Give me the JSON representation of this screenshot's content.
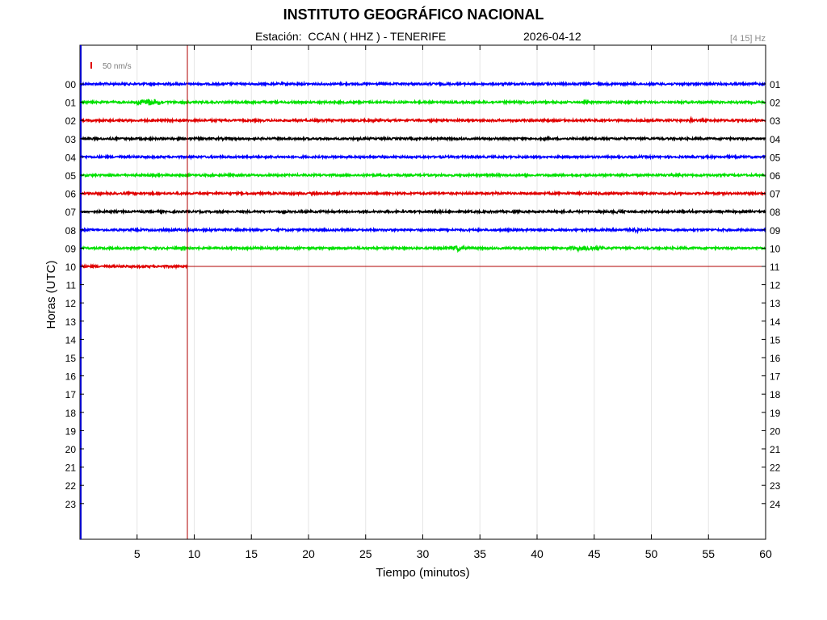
{
  "header": {
    "title": "INSTITUTO GEOGRÁFICO NACIONAL",
    "station_line": "Estación:  CCAN ( HHZ ) - TENERIFE",
    "date": "2026-04-12",
    "band": "[4 15] Hz"
  },
  "chart_data": {
    "type": "line",
    "title": "INSTITUTO GEOGRÁFICO NACIONAL",
    "xlabel": "Tiempo (minutos)",
    "ylabel": "Horas (UTC)",
    "xlim": [
      0,
      60
    ],
    "x_ticks": [
      5,
      10,
      15,
      20,
      25,
      30,
      35,
      40,
      45,
      50,
      55,
      60
    ],
    "grid_x": true,
    "left_labels": [
      "00",
      "01",
      "02",
      "03",
      "04",
      "05",
      "06",
      "07",
      "08",
      "09",
      "10",
      "11",
      "12",
      "13",
      "14",
      "15",
      "16",
      "17",
      "18",
      "19",
      "20",
      "21",
      "22",
      "23"
    ],
    "right_labels": [
      "01",
      "02",
      "03",
      "04",
      "05",
      "06",
      "07",
      "08",
      "09",
      "10",
      "11",
      "12",
      "13",
      "14",
      "15",
      "16",
      "17",
      "18",
      "19",
      "20",
      "21",
      "22",
      "23",
      "24"
    ],
    "scale_label": "50 nm/s",
    "current_time_minute": 9.4,
    "trace_colors": [
      "#0000ff",
      "#00e000",
      "#e00000",
      "#000000"
    ],
    "traces": [
      {
        "hour": "00",
        "color": "#0000ff",
        "end_minute": 60,
        "events": []
      },
      {
        "hour": "01",
        "color": "#00e000",
        "end_minute": 60,
        "events": [
          {
            "minute": 6.0,
            "width": 3.2,
            "amp": 4
          }
        ]
      },
      {
        "hour": "02",
        "color": "#e00000",
        "end_minute": 60,
        "events": [
          {
            "minute": 53.5,
            "width": 0.5,
            "amp": 3
          }
        ]
      },
      {
        "hour": "03",
        "color": "#000000",
        "end_minute": 60,
        "events": []
      },
      {
        "hour": "04",
        "color": "#0000ff",
        "end_minute": 60,
        "events": []
      },
      {
        "hour": "05",
        "color": "#00e000",
        "end_minute": 60,
        "events": []
      },
      {
        "hour": "06",
        "color": "#e00000",
        "end_minute": 60,
        "events": [
          {
            "minute": 36.5,
            "width": 0.5,
            "amp": 2
          }
        ]
      },
      {
        "hour": "07",
        "color": "#000000",
        "end_minute": 60,
        "events": [
          {
            "minute": 47.0,
            "width": 1.5,
            "amp": 2
          },
          {
            "minute": 53.5,
            "width": 0.8,
            "amp": 2
          }
        ]
      },
      {
        "hour": "08",
        "color": "#0000ff",
        "end_minute": 60,
        "events": [
          {
            "minute": 48.5,
            "width": 2.0,
            "amp": 2
          }
        ]
      },
      {
        "hour": "09",
        "color": "#00e000",
        "end_minute": 60,
        "events": [
          {
            "minute": 33.0,
            "width": 2.5,
            "amp": 3
          },
          {
            "minute": 44.5,
            "width": 4.0,
            "amp": 3
          }
        ]
      },
      {
        "hour": "10",
        "color": "#e00000",
        "end_minute": 9.4,
        "events": []
      }
    ]
  }
}
